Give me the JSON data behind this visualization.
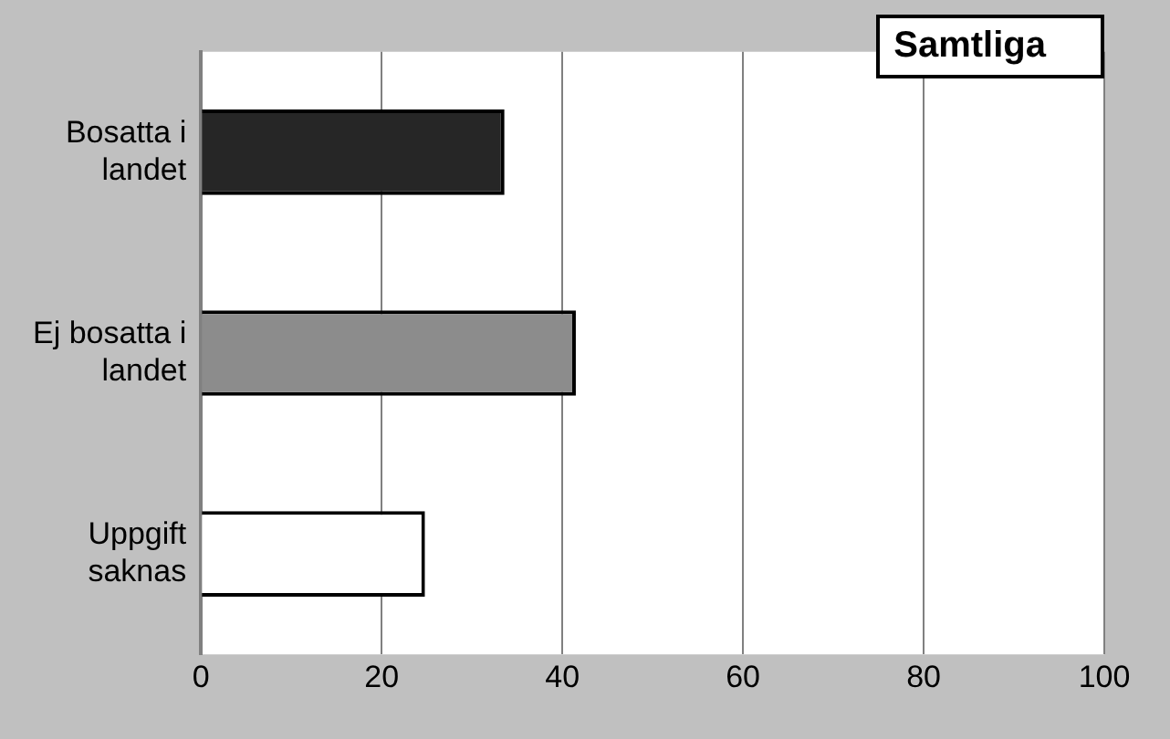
{
  "chart_data": {
    "type": "bar",
    "orientation": "horizontal",
    "title": "Samtliga",
    "categories": [
      "Bosatta i landet",
      "Ej bosatta i landet",
      "Uppgift saknas"
    ],
    "values": [
      33.6,
      41.5,
      24.8
    ],
    "colors": [
      "#262626",
      "#8c8c8c",
      "#ffffff"
    ],
    "xlim": [
      0,
      100
    ],
    "xticks": [
      0,
      20,
      40,
      60,
      80,
      100
    ],
    "grid": "x"
  }
}
